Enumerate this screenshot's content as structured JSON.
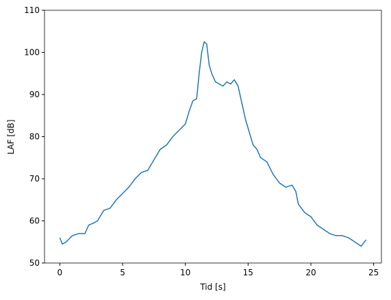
{
  "chart_data": {
    "type": "line",
    "x_label": "Tid [s]",
    "y_label": "LAF [dB]",
    "x": [
      0,
      0.2,
      0.5,
      1,
      1.5,
      2,
      2.3,
      2.7,
      3,
      3.5,
      4,
      4.5,
      5,
      5.5,
      6,
      6.5,
      7,
      7.5,
      8,
      8.5,
      9,
      9.5,
      10,
      10.3,
      10.6,
      10.9,
      11.1,
      11.3,
      11.5,
      11.7,
      11.9,
      12.1,
      12.4,
      12.7,
      13,
      13.3,
      13.6,
      13.9,
      14.2,
      14.5,
      14.8,
      15.1,
      15.4,
      15.7,
      16,
      16.5,
      17,
      17.5,
      18,
      18.5,
      18.8,
      19,
      19.5,
      20,
      20.5,
      21,
      21.5,
      22,
      22.5,
      23,
      23.5,
      24,
      24.4
    ],
    "series": [
      {
        "color": "#1f77b4",
        "values": [
          56,
          54.5,
          55,
          56.5,
          57,
          57,
          59,
          59.5,
          60,
          62.5,
          63,
          65,
          66.5,
          68,
          70,
          71.5,
          72,
          74.5,
          77,
          78,
          80,
          81.5,
          83,
          86,
          88.5,
          89,
          95,
          100,
          102.5,
          102,
          97,
          95,
          93,
          92.5,
          92,
          93,
          92.5,
          93.5,
          92,
          88,
          84,
          81,
          78,
          77,
          75,
          74,
          71,
          69,
          68,
          68.5,
          67,
          64,
          62,
          61,
          59,
          58,
          57,
          56.5,
          56.5,
          56,
          55,
          54,
          55.5
        ]
      }
    ],
    "xlim": [
      -1.22,
      25.62
    ],
    "ylim": [
      50,
      110
    ],
    "xticks": [
      0,
      5,
      10,
      15,
      20,
      25
    ],
    "yticks": [
      50,
      60,
      70,
      80,
      90,
      100,
      110
    ]
  }
}
